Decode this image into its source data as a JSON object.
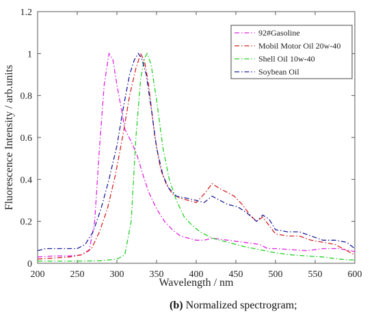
{
  "chart_data": {
    "type": "line",
    "xlabel": "Wavelength / nm",
    "ylabel": "Fluorescence Intensity / arb.units",
    "xlim": [
      200,
      600
    ],
    "ylim": [
      0,
      1.2
    ],
    "x_ticks": [
      "200",
      "250",
      "300",
      "350",
      "400",
      "450",
      "500",
      "550",
      "600"
    ],
    "y_ticks": [
      "0",
      "0.2",
      "0.4",
      "0.6",
      "0.8",
      "1",
      "1.2"
    ],
    "legend_position": "top-right",
    "grid": false,
    "series": [
      {
        "name": "92#Gasoline",
        "color": "#e020e0",
        "points": [
          [
            200,
            0.03
          ],
          [
            220,
            0.035
          ],
          [
            240,
            0.035
          ],
          [
            255,
            0.04
          ],
          [
            265,
            0.06
          ],
          [
            272,
            0.2
          ],
          [
            278,
            0.55
          ],
          [
            284,
            0.85
          ],
          [
            290,
            1.0
          ],
          [
            295,
            0.97
          ],
          [
            300,
            0.85
          ],
          [
            305,
            0.75
          ],
          [
            310,
            0.64
          ],
          [
            318,
            0.58
          ],
          [
            325,
            0.52
          ],
          [
            333,
            0.42
          ],
          [
            340,
            0.34
          ],
          [
            350,
            0.26
          ],
          [
            360,
            0.2
          ],
          [
            370,
            0.16
          ],
          [
            380,
            0.13
          ],
          [
            400,
            0.11
          ],
          [
            410,
            0.11
          ],
          [
            420,
            0.12
          ],
          [
            430,
            0.115
          ],
          [
            440,
            0.11
          ],
          [
            460,
            0.1
          ],
          [
            480,
            0.09
          ],
          [
            490,
            0.07
          ],
          [
            500,
            0.07
          ],
          [
            520,
            0.065
          ],
          [
            540,
            0.06
          ],
          [
            560,
            0.07
          ],
          [
            580,
            0.07
          ],
          [
            595,
            0.06
          ],
          [
            600,
            0.055
          ]
        ]
      },
      {
        "name": "Mobil Motor Oil 20w-40",
        "color": "#d42020",
        "points": [
          [
            200,
            0.02
          ],
          [
            220,
            0.025
          ],
          [
            240,
            0.03
          ],
          [
            255,
            0.04
          ],
          [
            268,
            0.07
          ],
          [
            278,
            0.15
          ],
          [
            288,
            0.26
          ],
          [
            298,
            0.42
          ],
          [
            308,
            0.62
          ],
          [
            316,
            0.8
          ],
          [
            324,
            0.93
          ],
          [
            330,
            1.0
          ],
          [
            335,
            0.96
          ],
          [
            340,
            0.85
          ],
          [
            348,
            0.6
          ],
          [
            355,
            0.45
          ],
          [
            362,
            0.38
          ],
          [
            370,
            0.33
          ],
          [
            380,
            0.31
          ],
          [
            390,
            0.3
          ],
          [
            400,
            0.29
          ],
          [
            410,
            0.33
          ],
          [
            420,
            0.38
          ],
          [
            428,
            0.36
          ],
          [
            438,
            0.34
          ],
          [
            448,
            0.32
          ],
          [
            458,
            0.28
          ],
          [
            468,
            0.23
          ],
          [
            476,
            0.2
          ],
          [
            484,
            0.22
          ],
          [
            492,
            0.18
          ],
          [
            500,
            0.14
          ],
          [
            515,
            0.13
          ],
          [
            530,
            0.13
          ],
          [
            545,
            0.11
          ],
          [
            560,
            0.1
          ],
          [
            575,
            0.09
          ],
          [
            590,
            0.06
          ],
          [
            600,
            0.04
          ]
        ]
      },
      {
        "name": "Shell Oil 10w-40",
        "color": "#20d020",
        "points": [
          [
            200,
            0.01
          ],
          [
            250,
            0.01
          ],
          [
            280,
            0.012
          ],
          [
            300,
            0.02
          ],
          [
            310,
            0.04
          ],
          [
            318,
            0.2
          ],
          [
            324,
            0.6
          ],
          [
            330,
            0.88
          ],
          [
            335,
            0.98
          ],
          [
            338,
            1.0
          ],
          [
            343,
            0.95
          ],
          [
            350,
            0.78
          ],
          [
            358,
            0.55
          ],
          [
            366,
            0.4
          ],
          [
            375,
            0.3
          ],
          [
            385,
            0.22
          ],
          [
            395,
            0.18
          ],
          [
            405,
            0.15
          ],
          [
            420,
            0.12
          ],
          [
            440,
            0.1
          ],
          [
            460,
            0.08
          ],
          [
            480,
            0.065
          ],
          [
            500,
            0.05
          ],
          [
            520,
            0.04
          ],
          [
            540,
            0.035
          ],
          [
            560,
            0.03
          ],
          [
            580,
            0.02
          ],
          [
            600,
            0.015
          ]
        ]
      },
      {
        "name": "Soybean Oil",
        "color": "#1a1a9a",
        "points": [
          [
            200,
            0.06
          ],
          [
            210,
            0.07
          ],
          [
            230,
            0.07
          ],
          [
            250,
            0.07
          ],
          [
            260,
            0.09
          ],
          [
            270,
            0.15
          ],
          [
            280,
            0.26
          ],
          [
            290,
            0.4
          ],
          [
            300,
            0.56
          ],
          [
            308,
            0.74
          ],
          [
            316,
            0.9
          ],
          [
            322,
            0.97
          ],
          [
            327,
            1.0
          ],
          [
            331,
            0.98
          ],
          [
            337,
            0.9
          ],
          [
            344,
            0.72
          ],
          [
            350,
            0.55
          ],
          [
            358,
            0.42
          ],
          [
            365,
            0.36
          ],
          [
            375,
            0.32
          ],
          [
            388,
            0.31
          ],
          [
            400,
            0.3
          ],
          [
            410,
            0.29
          ],
          [
            420,
            0.32
          ],
          [
            430,
            0.3
          ],
          [
            440,
            0.28
          ],
          [
            452,
            0.27
          ],
          [
            464,
            0.24
          ],
          [
            476,
            0.2
          ],
          [
            484,
            0.23
          ],
          [
            492,
            0.21
          ],
          [
            500,
            0.16
          ],
          [
            515,
            0.15
          ],
          [
            530,
            0.15
          ],
          [
            545,
            0.13
          ],
          [
            560,
            0.11
          ],
          [
            575,
            0.11
          ],
          [
            590,
            0.1
          ],
          [
            600,
            0.07
          ]
        ]
      }
    ]
  },
  "caption": {
    "label": "(b)",
    "text": " Normalized spectrogram;"
  }
}
